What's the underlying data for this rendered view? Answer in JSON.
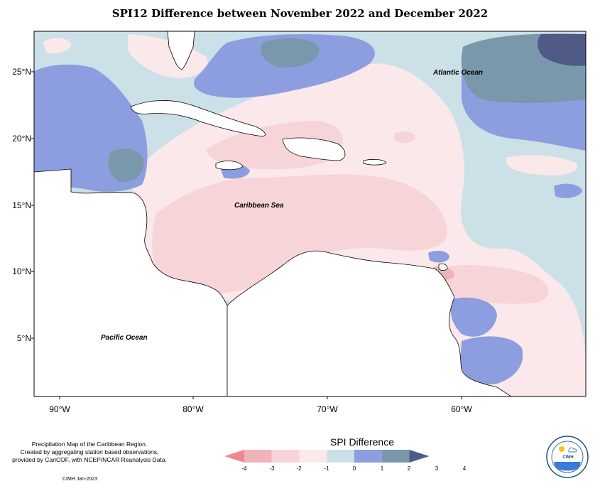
{
  "title": "SPI12 Difference between November 2022 and December 2022",
  "map": {
    "latitude_labels": [
      "25°N",
      "20°N",
      "15°N",
      "10°N",
      "5°N"
    ],
    "longitude_labels": [
      "90°W",
      "80°W",
      "70°W",
      "60°W"
    ],
    "region_labels": {
      "atlantic": "Atlantic Ocean",
      "caribbean": "Caribbean Sea",
      "pacific": "Pacific Ocean"
    },
    "extent": {
      "lon_min": -92,
      "lon_max": -50,
      "lat_min": 1,
      "lat_max": 28
    }
  },
  "legend": {
    "title": "SPI Difference",
    "ticks": [
      "-4",
      "-3",
      "-2",
      "-1",
      "0",
      "1",
      "2",
      "3",
      "4"
    ],
    "colors": [
      "#f0868f",
      "#efb4b9",
      "#f7d4d8",
      "#fbe8ea",
      "#cbe0e7",
      "#8c9edf",
      "#7a98ab",
      "#4f5b86"
    ]
  },
  "description": [
    "Precipitation Map of the Caribbean Region.",
    "Created by aggregating station based observations,",
    "provided by CariCOF, with NCEP/NCAR Reanalysis Data."
  ],
  "credit": "CIMH Jan-2023",
  "logo": {
    "text": "CIMH"
  }
}
